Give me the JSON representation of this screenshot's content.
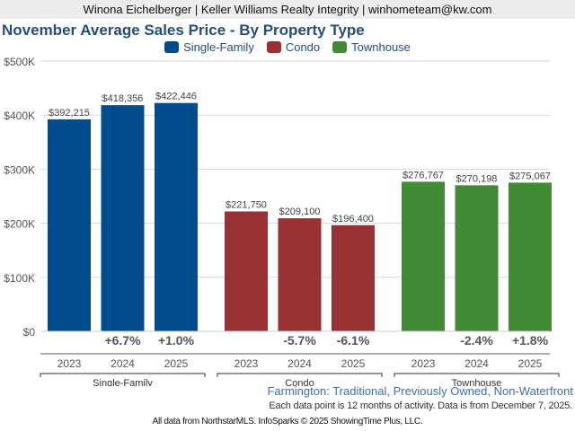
{
  "header": {
    "agent_line": "Winona Eichelberger | Keller Williams Realty Integrity | winhometeam@kw.com"
  },
  "chart_data": {
    "type": "bar",
    "title": "November Average Sales Price - By Property Type",
    "xlabel": "",
    "ylabel": "",
    "ylim": [
      0,
      500000
    ],
    "y_ticks": [
      {
        "value": 0,
        "label": "$0"
      },
      {
        "value": 100000,
        "label": "$100K"
      },
      {
        "value": 200000,
        "label": "$200K"
      },
      {
        "value": 300000,
        "label": "$300K"
      },
      {
        "value": 400000,
        "label": "$400K"
      },
      {
        "value": 500000,
        "label": "$500K"
      }
    ],
    "grid": true,
    "legend_position": "top-center",
    "categories": [
      "2023",
      "2024",
      "2025"
    ],
    "series": [
      {
        "name": "Single-Family",
        "color": "#004c8c",
        "values": [
          392215,
          418356,
          422446
        ],
        "value_labels": [
          "$392,215",
          "$418,356",
          "$422,446"
        ],
        "pct_changes": [
          "",
          "+6.7%",
          "+1.0%"
        ]
      },
      {
        "name": "Condo",
        "color": "#993033",
        "values": [
          221750,
          209100,
          196400
        ],
        "value_labels": [
          "$221,750",
          "$209,100",
          "$196,400"
        ],
        "pct_changes": [
          "",
          "-5.7%",
          "-6.1%"
        ]
      },
      {
        "name": "Townhouse",
        "color": "#438a36",
        "values": [
          276767,
          270198,
          275067
        ],
        "value_labels": [
          "$276,767",
          "$270,198",
          "$275,067"
        ],
        "pct_changes": [
          "",
          "-2.4%",
          "+1.8%"
        ]
      }
    ]
  },
  "subtitle": "Farmington: Traditional, Previously Owned, Non-Waterfront",
  "note": "Each data point is 12 months of activity. Data is from December 7, 2025.",
  "footer": "All data from NorthstarMLS. InfoSparks © 2025 ShowingTime Plus, LLC."
}
